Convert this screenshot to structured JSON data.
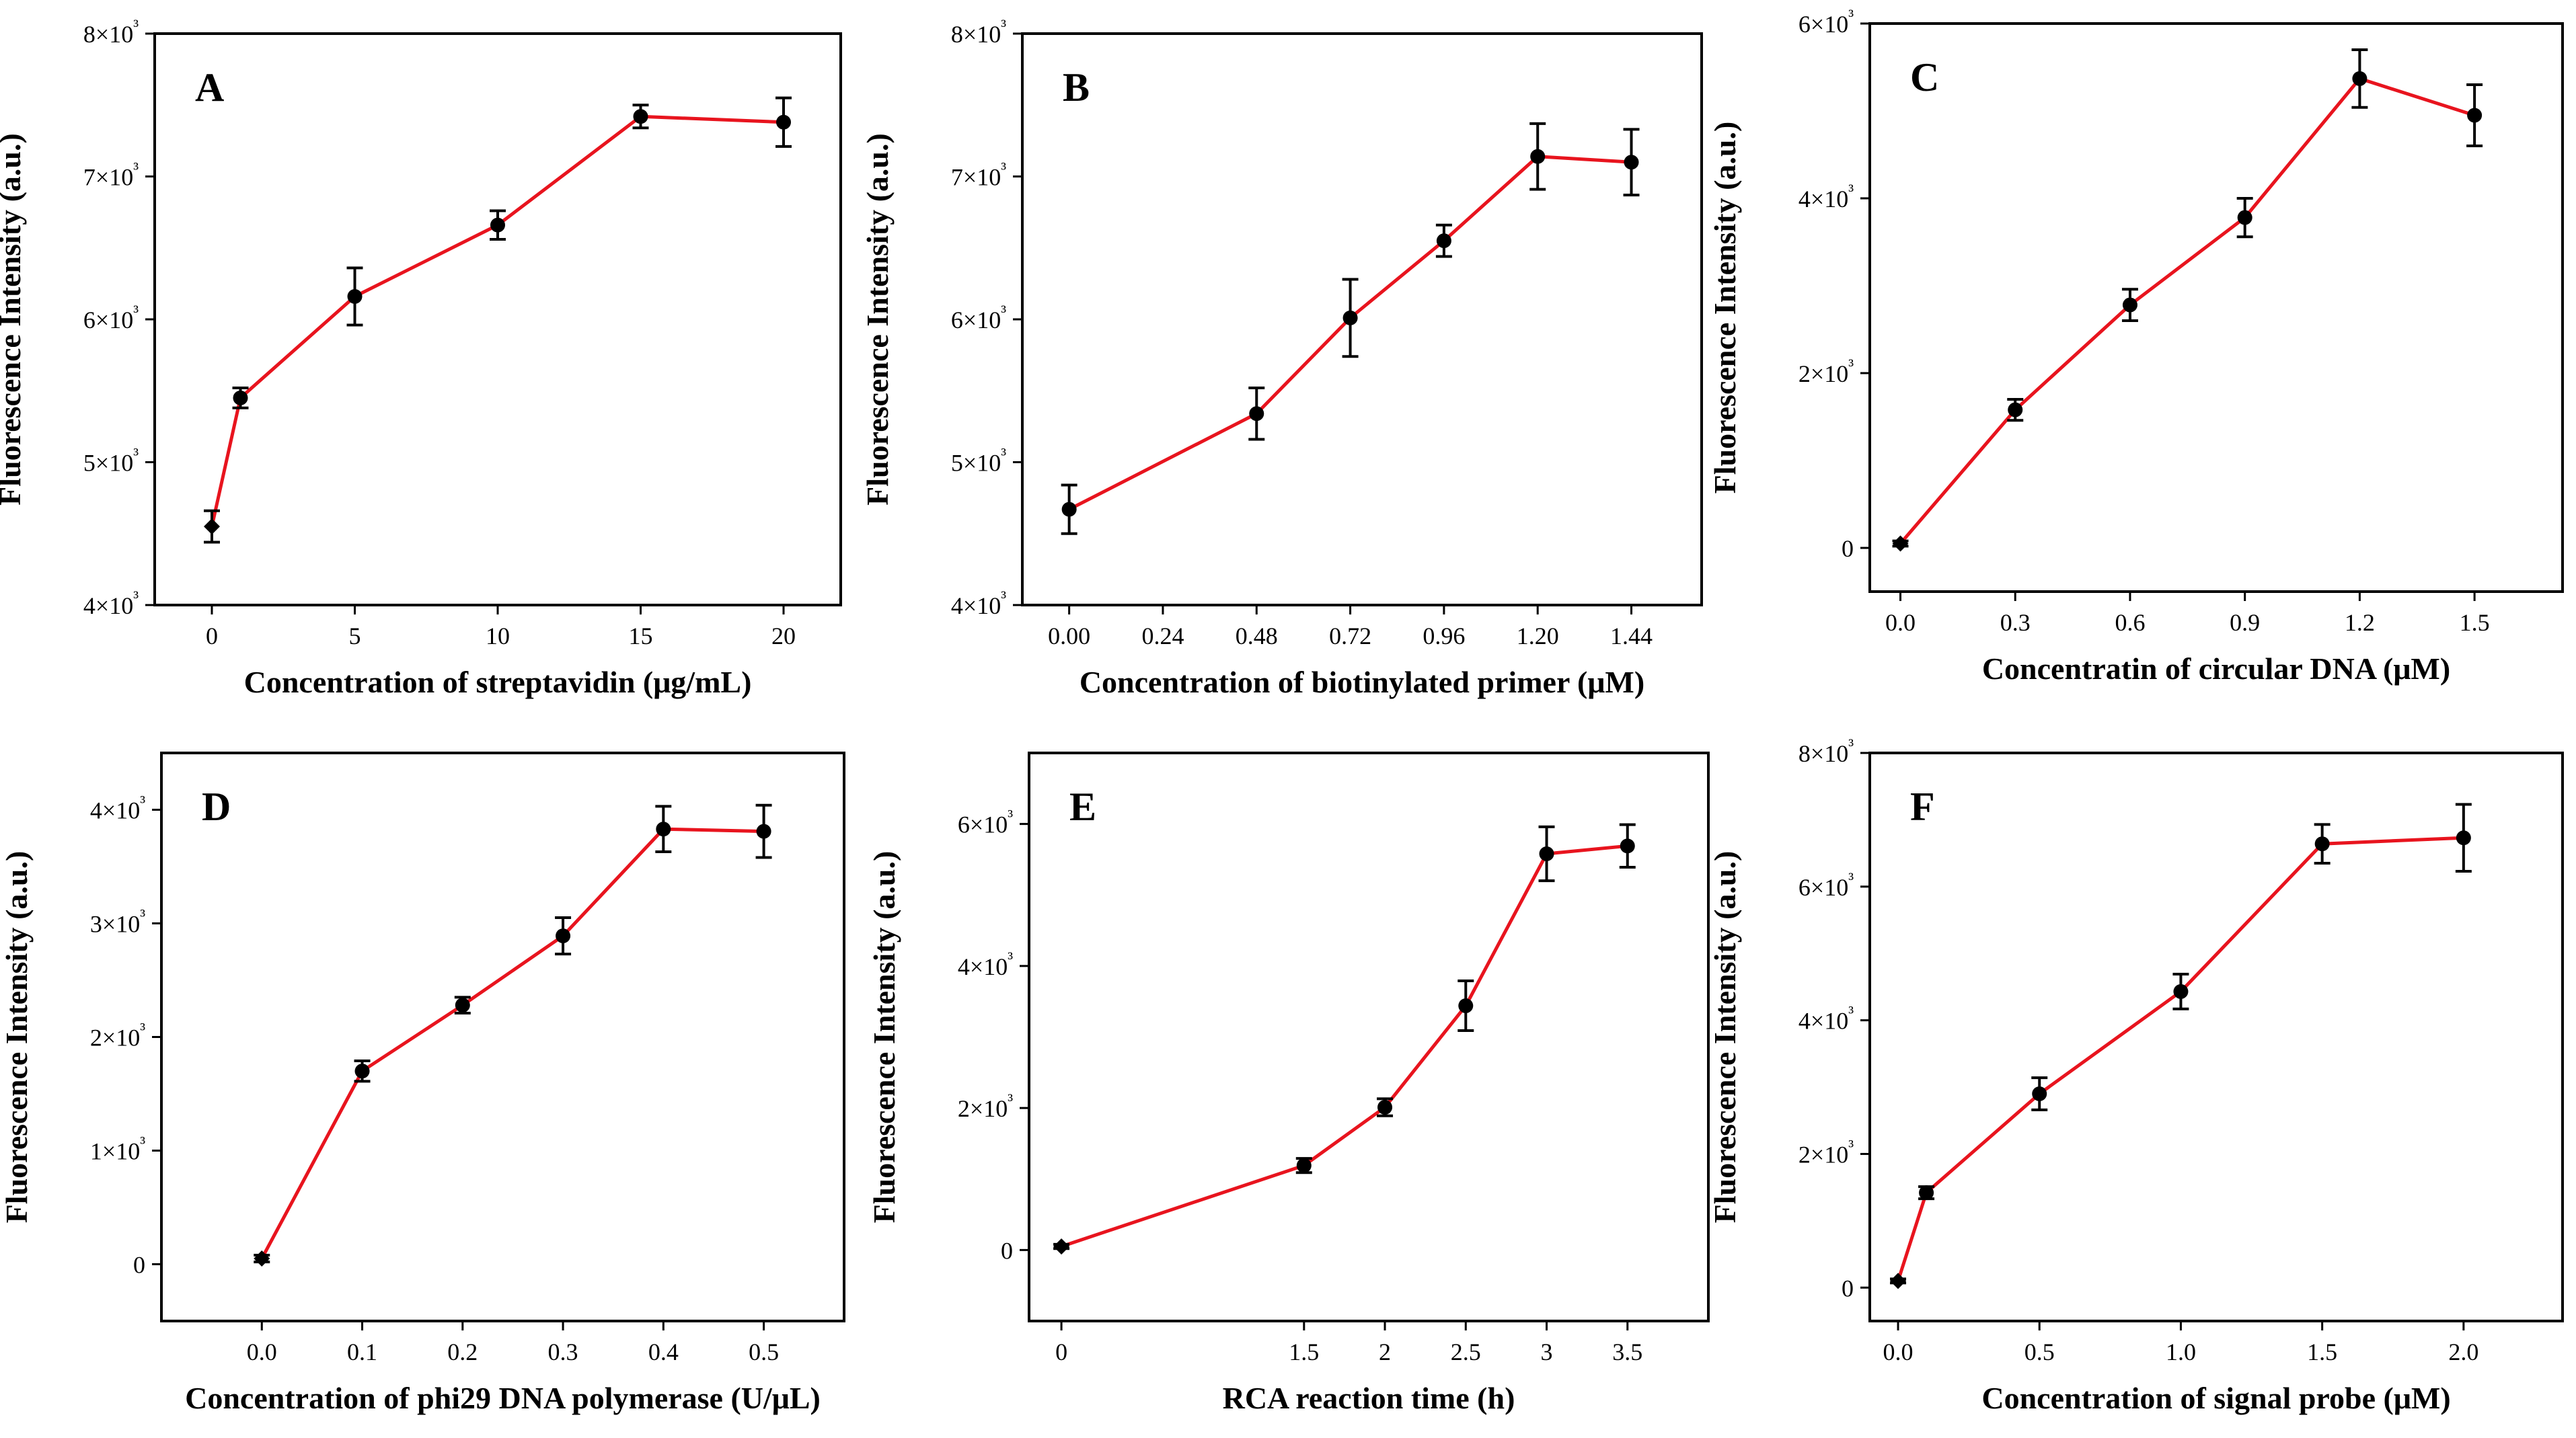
{
  "chart_data": [
    {
      "type": "line",
      "panel_label": "A",
      "xlabel": "Concentration of streptavidin (μg/mL)",
      "ylabel": "Fluorescence Intensity (a.u.)",
      "x": [
        0,
        1,
        5,
        10,
        15,
        20
      ],
      "y": [
        4550,
        5450,
        6160,
        6660,
        7420,
        7380
      ],
      "err": [
        110,
        70,
        200,
        100,
        80,
        170
      ],
      "xlim": [
        -2,
        22
      ],
      "ylim": [
        4000,
        8000
      ],
      "xticks": [
        {
          "v": 0,
          "label": "0"
        },
        {
          "v": 5,
          "label": "5"
        },
        {
          "v": 10,
          "label": "10"
        },
        {
          "v": 15,
          "label": "15"
        },
        {
          "v": 20,
          "label": "20"
        }
      ],
      "yticks": [
        {
          "v": 4000,
          "label": "4×10³"
        },
        {
          "v": 5000,
          "label": "5×10³"
        },
        {
          "v": 6000,
          "label": "6×10³"
        },
        {
          "v": 7000,
          "label": "7×10³"
        },
        {
          "v": 8000,
          "label": "8×10³"
        }
      ],
      "line_color": "#e8141e",
      "marker_color": "#000000"
    },
    {
      "type": "line",
      "panel_label": "B",
      "xlabel": "Concentration of biotinylated primer (μM)",
      "ylabel": "Fluorescence Intensity (a.u.)",
      "x": [
        0.0,
        0.48,
        0.72,
        0.96,
        1.2,
        1.44
      ],
      "y": [
        4670,
        5340,
        6010,
        6550,
        7140,
        7100
      ],
      "err": [
        170,
        180,
        270,
        110,
        230,
        230
      ],
      "xlim": [
        -0.12,
        1.62
      ],
      "ylim": [
        4000,
        8000
      ],
      "xticks": [
        {
          "v": 0.0,
          "label": "0.00"
        },
        {
          "v": 0.24,
          "label": "0.24"
        },
        {
          "v": 0.48,
          "label": "0.48"
        },
        {
          "v": 0.72,
          "label": "0.72"
        },
        {
          "v": 0.96,
          "label": "0.96"
        },
        {
          "v": 1.2,
          "label": "1.20"
        },
        {
          "v": 1.44,
          "label": "1.44"
        }
      ],
      "yticks": [
        {
          "v": 4000,
          "label": "4×10³"
        },
        {
          "v": 5000,
          "label": "5×10³"
        },
        {
          "v": 6000,
          "label": "6×10³"
        },
        {
          "v": 7000,
          "label": "7×10³"
        },
        {
          "v": 8000,
          "label": "8×10³"
        }
      ],
      "line_color": "#e8141e",
      "marker_color": "#000000"
    },
    {
      "type": "line",
      "panel_label": "C",
      "xlabel": "Concentratin of circular DNA (μM)",
      "ylabel": "Fluorescence Intensity (a.u.)",
      "x": [
        0.0,
        0.3,
        0.6,
        0.9,
        1.2,
        1.5
      ],
      "y": [
        50,
        1580,
        2780,
        3780,
        5370,
        4950
      ],
      "err": [
        30,
        120,
        180,
        220,
        330,
        350
      ],
      "xlim": [
        -0.08,
        1.73
      ],
      "ylim": [
        -500,
        6000
      ],
      "xticks": [
        {
          "v": 0.0,
          "label": "0.0"
        },
        {
          "v": 0.3,
          "label": "0.3"
        },
        {
          "v": 0.6,
          "label": "0.6"
        },
        {
          "v": 0.9,
          "label": "0.9"
        },
        {
          "v": 1.2,
          "label": "1.2"
        },
        {
          "v": 1.5,
          "label": "1.5"
        }
      ],
      "yticks": [
        {
          "v": 0,
          "label": "0"
        },
        {
          "v": 2000,
          "label": "2×10³"
        },
        {
          "v": 4000,
          "label": "4×10³"
        },
        {
          "v": 6000,
          "label": "6×10³"
        }
      ],
      "line_color": "#e8141e",
      "marker_color": "#000000"
    },
    {
      "type": "line",
      "panel_label": "D",
      "xlabel": "Concentration of phi29 DNA polymerase (U/μL)",
      "ylabel": "Fluorescence Intensity (a.u.)",
      "x": [
        0.0,
        0.1,
        0.2,
        0.3,
        0.4,
        0.5
      ],
      "y": [
        50,
        1700,
        2280,
        2890,
        3830,
        3810
      ],
      "err": [
        30,
        90,
        70,
        160,
        200,
        230
      ],
      "xlim": [
        -0.1,
        0.58
      ],
      "ylim": [
        -500,
        4500
      ],
      "xticks": [
        {
          "v": 0.0,
          "label": "0.0"
        },
        {
          "v": 0.1,
          "label": "0.1"
        },
        {
          "v": 0.2,
          "label": "0.2"
        },
        {
          "v": 0.3,
          "label": "0.3"
        },
        {
          "v": 0.4,
          "label": "0.4"
        },
        {
          "v": 0.5,
          "label": "0.5"
        }
      ],
      "yticks": [
        {
          "v": 0,
          "label": "0"
        },
        {
          "v": 1000,
          "label": "1×10³"
        },
        {
          "v": 2000,
          "label": "2×10³"
        },
        {
          "v": 3000,
          "label": "3×10³"
        },
        {
          "v": 4000,
          "label": "4×10³"
        }
      ],
      "line_color": "#e8141e",
      "marker_color": "#000000"
    },
    {
      "type": "line",
      "panel_label": "E",
      "xlabel": "RCA reaction time (h)",
      "ylabel": "Fluorescence Intensity (a.u.)",
      "x": [
        0,
        1.5,
        2,
        2.5,
        3,
        3.5
      ],
      "y": [
        50,
        1190,
        2010,
        3440,
        5580,
        5690
      ],
      "err": [
        30,
        100,
        120,
        350,
        380,
        300
      ],
      "xlim": [
        -0.2,
        4.0
      ],
      "ylim": [
        -1000,
        7000
      ],
      "xticks": [
        {
          "v": 0,
          "label": "0"
        },
        {
          "v": 1.5,
          "label": "1.5"
        },
        {
          "v": 2,
          "label": "2"
        },
        {
          "v": 2.5,
          "label": "2.5"
        },
        {
          "v": 3,
          "label": "3"
        },
        {
          "v": 3.5,
          "label": "3.5"
        }
      ],
      "x_positions": [
        0,
        1.5,
        2,
        2.5,
        3,
        3.5
      ],
      "yticks": [
        {
          "v": 0,
          "label": "0"
        },
        {
          "v": 2000,
          "label": "2×10³"
        },
        {
          "v": 4000,
          "label": "4×10³"
        },
        {
          "v": 6000,
          "label": "6×10³"
        }
      ],
      "line_color": "#e8141e",
      "marker_color": "#000000"
    },
    {
      "type": "line",
      "panel_label": "F",
      "xlabel": "Concentration of signal probe (μM)",
      "ylabel": "Fluorescence Intensity (a.u.)",
      "x": [
        0.0,
        0.1,
        0.5,
        1.0,
        1.5,
        2.0
      ],
      "y": [
        100,
        1420,
        2900,
        4430,
        6640,
        6730
      ],
      "err": [
        30,
        90,
        240,
        260,
        290,
        500
      ],
      "xlim": [
        -0.1,
        2.35
      ],
      "ylim": [
        -500,
        8000
      ],
      "xticks": [
        {
          "v": 0.0,
          "label": "0.0"
        },
        {
          "v": 0.5,
          "label": "0.5"
        },
        {
          "v": 1.0,
          "label": "1.0"
        },
        {
          "v": 1.5,
          "label": "1.5"
        },
        {
          "v": 2.0,
          "label": "2.0"
        }
      ],
      "yticks": [
        {
          "v": 0,
          "label": "0"
        },
        {
          "v": 2000,
          "label": "2×10³"
        },
        {
          "v": 4000,
          "label": "4×10³"
        },
        {
          "v": 6000,
          "label": "6×10³"
        },
        {
          "v": 8000,
          "label": "8×10³"
        }
      ],
      "line_color": "#e8141e",
      "marker_color": "#000000"
    }
  ]
}
